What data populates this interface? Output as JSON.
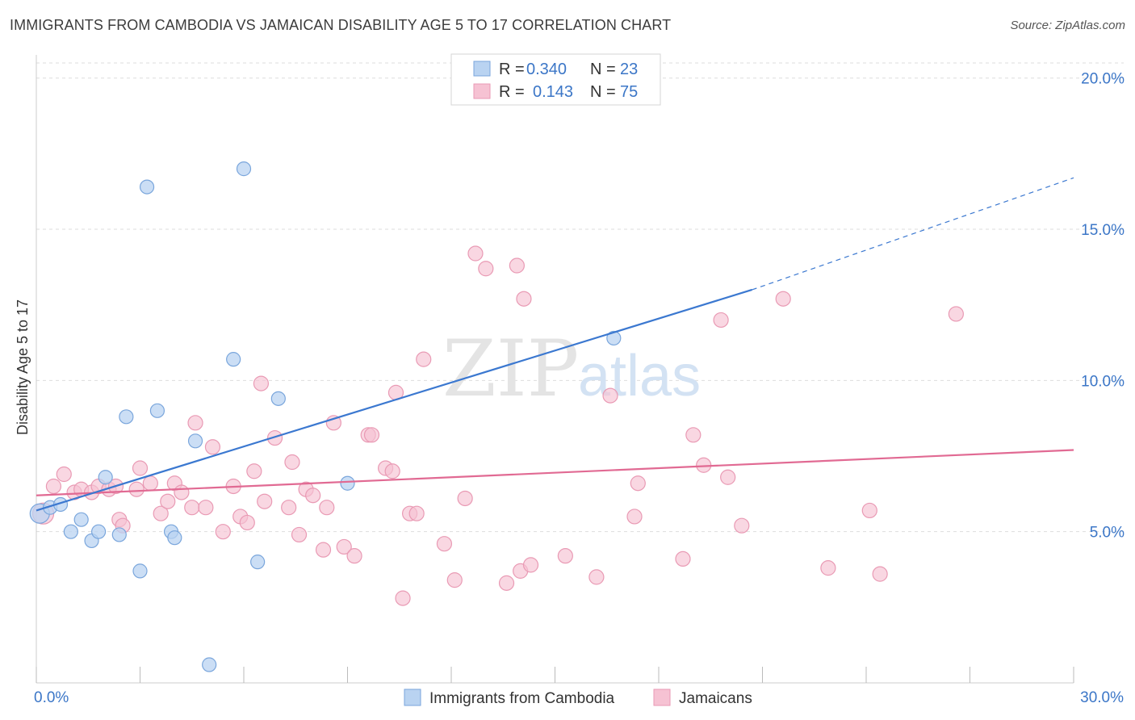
{
  "header": {
    "title": "IMMIGRANTS FROM CAMBODIA VS JAMAICAN DISABILITY AGE 5 TO 17 CORRELATION CHART",
    "source": "Source: ZipAtlas.com"
  },
  "watermark": {
    "zip": "ZIP",
    "atlas": "atlas"
  },
  "legend_top": [
    {
      "r_label": "R =",
      "r_value": "0.340",
      "n_label": "N =",
      "n_value": "23"
    },
    {
      "r_label": "R =",
      "r_value": "0.143",
      "n_label": "N =",
      "n_value": "75"
    }
  ],
  "legend_bottom": [
    {
      "label": "Immigrants from Cambodia"
    },
    {
      "label": "Jamaicans"
    }
  ],
  "colors": {
    "blue_fill": "#b9d3f1",
    "blue_stroke": "#7aa6dc",
    "blue_line": "#3b78d0",
    "pink_fill": "#f6c2d3",
    "pink_stroke": "#e99ab4",
    "pink_line": "#e16a93",
    "tick_text": "#3b76c7",
    "grid": "#dddddd"
  },
  "chart_data": {
    "type": "scatter",
    "title": "IMMIGRANTS FROM CAMBODIA VS JAMAICAN DISABILITY AGE 5 TO 17 CORRELATION CHART",
    "xlabel": "",
    "ylabel": "Disability Age 5 to 17",
    "xlim": [
      0,
      30
    ],
    "ylim": [
      0,
      20.5
    ],
    "x_tick_labels": [
      {
        "value": 0,
        "label": "0.0%"
      },
      {
        "value": 30,
        "label": "30.0%"
      }
    ],
    "y_tick_labels": [
      {
        "value": 5,
        "label": "5.0%"
      },
      {
        "value": 10,
        "label": "10.0%"
      },
      {
        "value": 15,
        "label": "15.0%"
      },
      {
        "value": 20,
        "label": "20.0%"
      }
    ],
    "grid": true,
    "series": [
      {
        "name": "Immigrants from Cambodia",
        "color": "#b9d3f1",
        "points": [
          [
            0.1,
            5.6
          ],
          [
            0.4,
            5.8
          ],
          [
            0.7,
            5.9
          ],
          [
            1.0,
            5.0
          ],
          [
            1.3,
            5.4
          ],
          [
            1.6,
            4.7
          ],
          [
            1.8,
            5.0
          ],
          [
            2.0,
            6.8
          ],
          [
            2.4,
            4.9
          ],
          [
            2.6,
            8.8
          ],
          [
            3.0,
            3.7
          ],
          [
            3.2,
            16.4
          ],
          [
            3.5,
            9.0
          ],
          [
            3.9,
            5.0
          ],
          [
            4.0,
            4.8
          ],
          [
            4.6,
            8.0
          ],
          [
            5.0,
            0.6
          ],
          [
            5.7,
            10.7
          ],
          [
            6.0,
            17.0
          ],
          [
            6.4,
            4.0
          ],
          [
            7.0,
            9.4
          ],
          [
            9.0,
            6.6
          ],
          [
            16.7,
            11.4
          ]
        ],
        "trend": {
          "x0": 0,
          "y0": 5.7,
          "x1": 20.7,
          "y1": 13.0,
          "dash_to_x": 30,
          "dash_to_y": 16.7
        }
      },
      {
        "name": "Jamaicans",
        "color": "#f6c2d3",
        "points": [
          [
            0.2,
            5.6
          ],
          [
            0.5,
            6.5
          ],
          [
            0.8,
            6.9
          ],
          [
            1.1,
            6.3
          ],
          [
            1.3,
            6.4
          ],
          [
            1.6,
            6.3
          ],
          [
            1.8,
            6.5
          ],
          [
            2.1,
            6.4
          ],
          [
            2.3,
            6.5
          ],
          [
            2.4,
            5.4
          ],
          [
            2.5,
            5.2
          ],
          [
            2.9,
            6.4
          ],
          [
            3.0,
            7.1
          ],
          [
            3.3,
            6.6
          ],
          [
            3.6,
            5.6
          ],
          [
            3.8,
            6.0
          ],
          [
            4.0,
            6.6
          ],
          [
            4.2,
            6.3
          ],
          [
            4.5,
            5.8
          ],
          [
            4.6,
            8.6
          ],
          [
            4.9,
            5.8
          ],
          [
            5.1,
            7.8
          ],
          [
            5.4,
            5.0
          ],
          [
            5.7,
            6.5
          ],
          [
            5.9,
            5.5
          ],
          [
            6.1,
            5.3
          ],
          [
            6.3,
            7.0
          ],
          [
            6.5,
            9.9
          ],
          [
            6.6,
            6.0
          ],
          [
            6.9,
            8.1
          ],
          [
            7.3,
            5.8
          ],
          [
            7.4,
            7.3
          ],
          [
            7.6,
            4.9
          ],
          [
            7.8,
            6.4
          ],
          [
            8.0,
            6.2
          ],
          [
            8.3,
            4.4
          ],
          [
            8.4,
            5.8
          ],
          [
            8.6,
            8.6
          ],
          [
            8.9,
            4.5
          ],
          [
            9.2,
            4.2
          ],
          [
            9.6,
            8.2
          ],
          [
            9.7,
            8.2
          ],
          [
            10.1,
            7.1
          ],
          [
            10.3,
            7.0
          ],
          [
            10.4,
            9.6
          ],
          [
            10.6,
            2.8
          ],
          [
            10.8,
            5.6
          ],
          [
            11.0,
            5.6
          ],
          [
            11.2,
            10.7
          ],
          [
            11.8,
            4.6
          ],
          [
            12.1,
            3.4
          ],
          [
            12.4,
            6.1
          ],
          [
            12.7,
            14.2
          ],
          [
            13.0,
            13.7
          ],
          [
            13.6,
            3.3
          ],
          [
            14.0,
            3.7
          ],
          [
            14.1,
            12.7
          ],
          [
            14.3,
            3.9
          ],
          [
            15.3,
            4.2
          ],
          [
            16.2,
            3.5
          ],
          [
            16.6,
            9.5
          ],
          [
            17.3,
            5.5
          ],
          [
            17.4,
            6.6
          ],
          [
            18.7,
            4.1
          ],
          [
            19.0,
            8.2
          ],
          [
            19.3,
            7.2
          ],
          [
            19.8,
            12.0
          ],
          [
            20.0,
            6.8
          ],
          [
            20.4,
            5.2
          ],
          [
            21.6,
            12.7
          ],
          [
            22.9,
            3.8
          ],
          [
            24.1,
            5.7
          ],
          [
            24.4,
            3.6
          ],
          [
            26.6,
            12.2
          ],
          [
            13.9,
            13.8
          ]
        ],
        "trend": {
          "x0": 0,
          "y0": 6.2,
          "x1": 30,
          "y1": 7.7
        }
      }
    ]
  }
}
